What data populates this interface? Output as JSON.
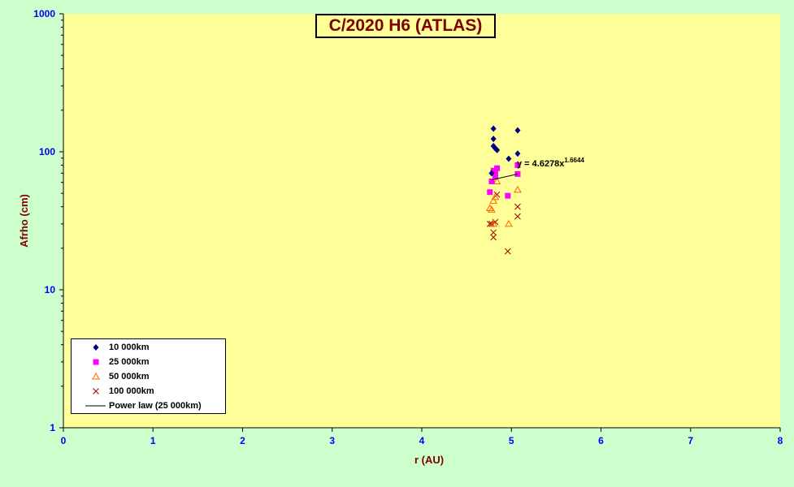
{
  "chart_data": {
    "type": "scatter",
    "title": "C/2020 H6 (ATLAS)",
    "xlabel": "r (AU)",
    "ylabel": "Afrho (cm)",
    "xlim": [
      0,
      8
    ],
    "ylim": [
      1,
      1000
    ],
    "yscale": "log",
    "x_ticks": [
      "0",
      "1",
      "2",
      "3",
      "4",
      "5",
      "6",
      "7",
      "8"
    ],
    "y_ticks": [
      "1",
      "10",
      "100",
      "1000"
    ],
    "grid": false,
    "legend_position": "bottom-left",
    "series": [
      {
        "name": "10 000km",
        "marker": "diamond",
        "color": "#000080",
        "points": [
          [
            4.8,
            147
          ],
          [
            4.8,
            124
          ],
          [
            4.8,
            110
          ],
          [
            4.82,
            106
          ],
          [
            4.84,
            103
          ],
          [
            4.78,
            70
          ],
          [
            4.97,
            89
          ],
          [
            5.07,
            143
          ],
          [
            5.07,
            97
          ]
        ]
      },
      {
        "name": "25 000km",
        "marker": "square",
        "color": "#ff00ff",
        "points": [
          [
            4.76,
            51
          ],
          [
            4.78,
            61
          ],
          [
            4.8,
            73
          ],
          [
            4.82,
            70
          ],
          [
            4.84,
            76
          ],
          [
            4.82,
            66
          ],
          [
            4.96,
            48
          ],
          [
            5.07,
            80
          ],
          [
            5.07,
            69
          ]
        ]
      },
      {
        "name": "50 000km",
        "marker": "triangle",
        "color": "#ff6600",
        "points": [
          [
            4.76,
            39
          ],
          [
            4.78,
            38
          ],
          [
            4.8,
            44
          ],
          [
            4.82,
            47
          ],
          [
            4.84,
            61
          ],
          [
            4.97,
            30
          ],
          [
            5.07,
            53
          ],
          [
            4.8,
            30
          ]
        ]
      },
      {
        "name": "100 000km",
        "marker": "x",
        "color": "#990000",
        "points": [
          [
            4.76,
            30
          ],
          [
            4.78,
            30
          ],
          [
            4.8,
            26
          ],
          [
            4.8,
            24
          ],
          [
            4.82,
            31
          ],
          [
            4.84,
            49
          ],
          [
            4.96,
            19
          ],
          [
            5.07,
            40
          ],
          [
            5.07,
            34
          ]
        ]
      }
    ],
    "trendline": {
      "name": "Power law (25 000km)",
      "equation": "y = 4.6278x",
      "exponent": "1.6644",
      "a": 4.6278,
      "b": 1.6644,
      "x_range": [
        4.78,
        5.07
      ]
    }
  }
}
